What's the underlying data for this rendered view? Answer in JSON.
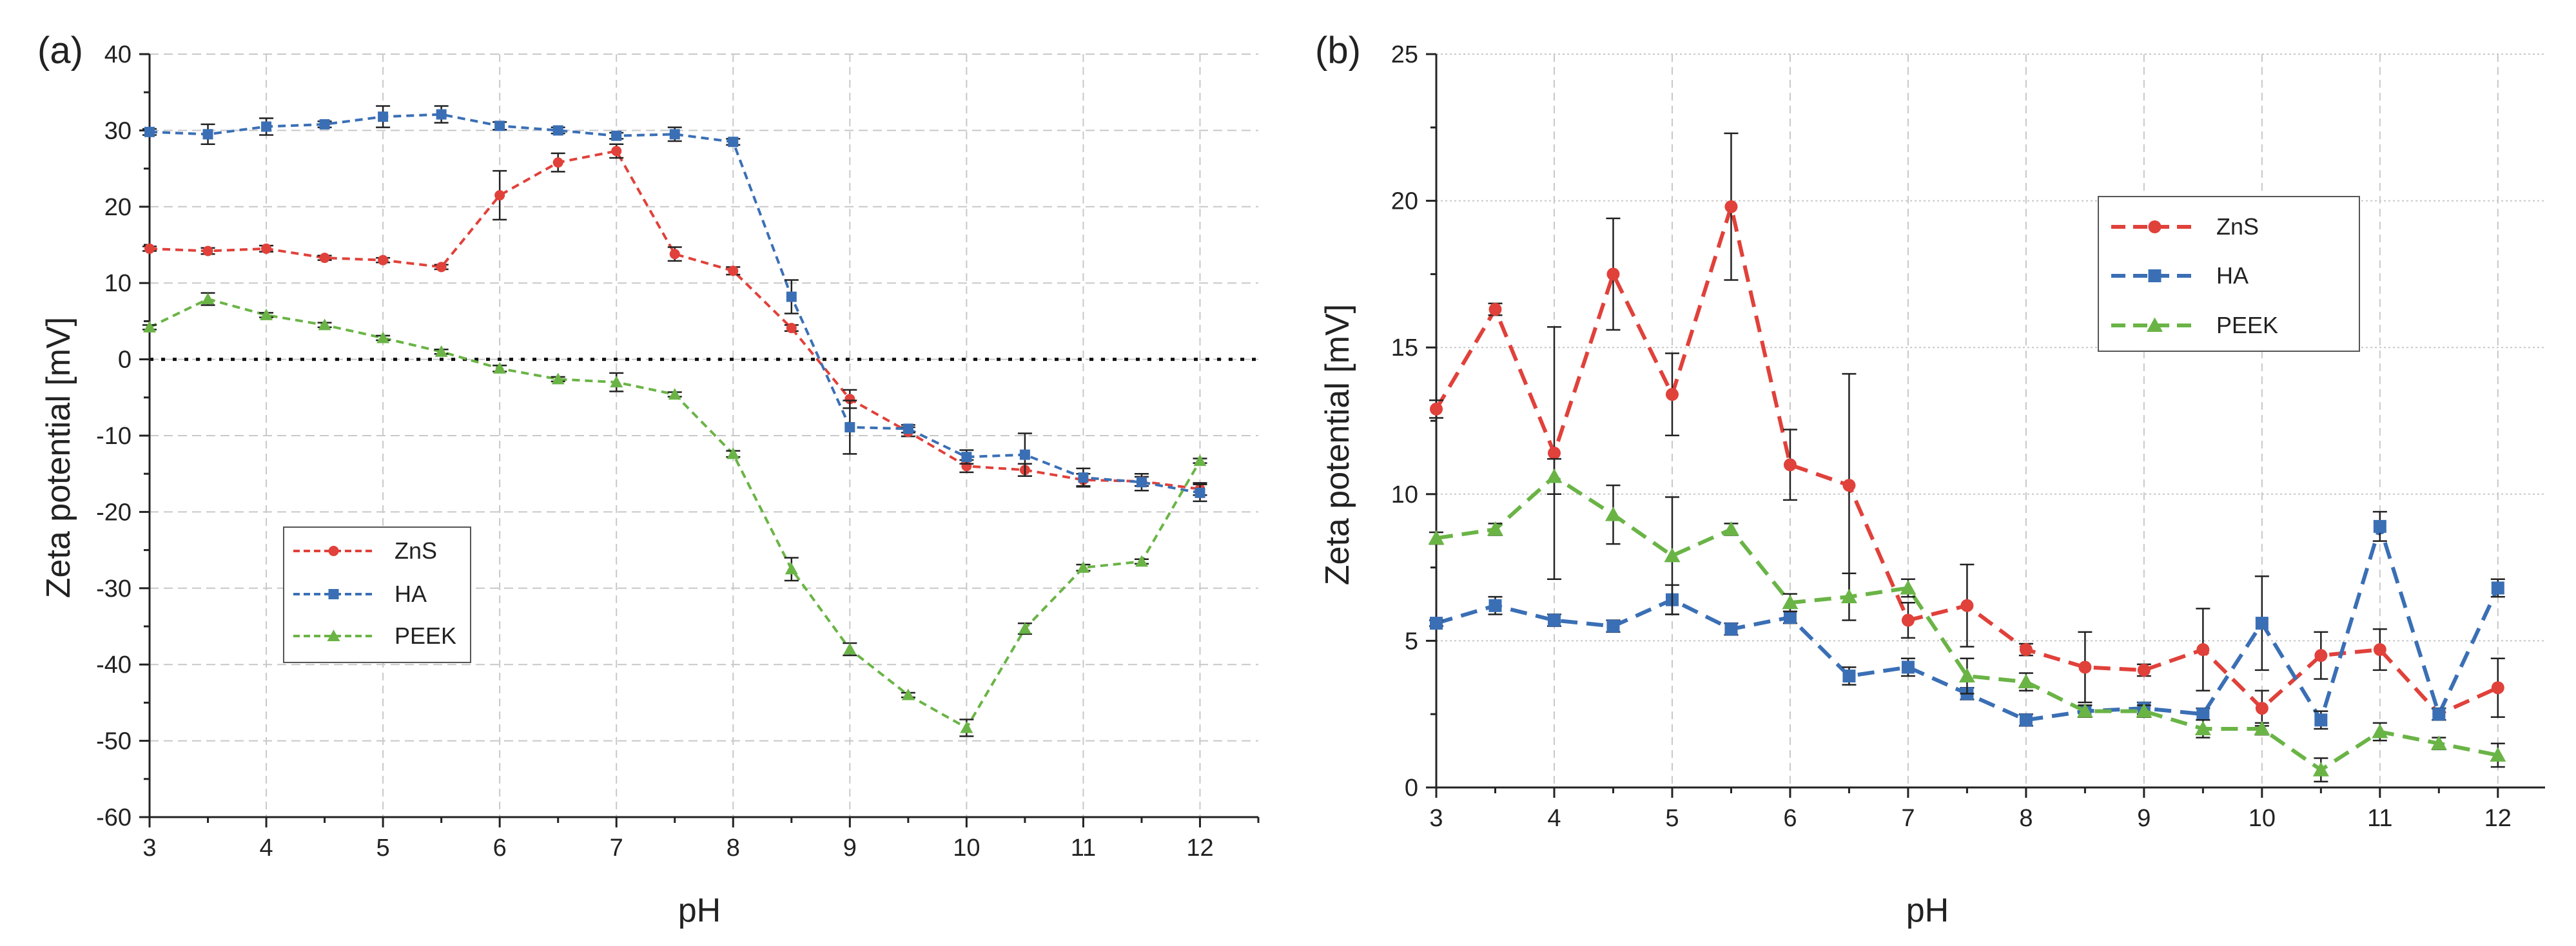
{
  "chart_data": [
    {
      "type": "line",
      "panel_label": "(a)",
      "xlabel": "pH",
      "ylabel": "Zeta potential [mV]",
      "xlim": [
        3,
        12.5
      ],
      "ylim": [
        -60,
        40
      ],
      "xticks": [
        3,
        4,
        5,
        6,
        7,
        8,
        9,
        10,
        11,
        12
      ],
      "yticks": [
        -60,
        -50,
        -40,
        -30,
        -20,
        -10,
        0,
        10,
        20,
        30,
        40
      ],
      "zero_line": true,
      "legend_position": "lower-left",
      "series": [
        {
          "name": "ZnS",
          "color": "#e0413a",
          "marker": "circle",
          "x": [
            3,
            3.5,
            4,
            4.5,
            5,
            5.5,
            6,
            6.5,
            7,
            7.5,
            8,
            8.5,
            9,
            9.5,
            10,
            10.5,
            11,
            11.5,
            12
          ],
          "y": [
            14.5,
            14.2,
            14.5,
            13.3,
            13,
            12.1,
            21.5,
            25.8,
            27.3,
            13.8,
            11.6,
            4.1,
            -5.2,
            -9.5,
            -14,
            -14.5,
            -15.8,
            -16,
            -17
          ],
          "err": [
            0.3,
            0.4,
            0.4,
            0.3,
            0.3,
            0.3,
            3.2,
            1.2,
            0.9,
            0.9,
            0.5,
            0.4,
            1.2,
            0.6,
            0.8,
            0.8,
            0.8,
            0.6,
            0.8
          ]
        },
        {
          "name": "HA",
          "color": "#3a6fb5",
          "marker": "square",
          "x": [
            3,
            3.5,
            4,
            4.5,
            5,
            5.5,
            6,
            6.5,
            7,
            7.5,
            8,
            8.5,
            9,
            9.5,
            10,
            10.5,
            11,
            11.5,
            12
          ],
          "y": [
            29.8,
            29.5,
            30.5,
            30.8,
            31.8,
            32.1,
            30.6,
            30,
            29.3,
            29.5,
            28.5,
            8.2,
            -8.9,
            -9.1,
            -12.8,
            -12.5,
            -15.5,
            -16.1,
            -17.5
          ],
          "err": [
            0.4,
            1.3,
            1.1,
            0.4,
            1.4,
            1.1,
            0.5,
            0.4,
            0.4,
            0.9,
            0.4,
            2.2,
            3.5,
            0.5,
            0.9,
            2.8,
            1.2,
            1.1,
            1.1
          ]
        },
        {
          "name": "PEEK",
          "color": "#6ab446",
          "marker": "triangle",
          "x": [
            3,
            3.5,
            4,
            4.5,
            5,
            5.5,
            6,
            6.5,
            7,
            7.5,
            8,
            8.5,
            9,
            9.5,
            10,
            10.5,
            11,
            11.5,
            12
          ],
          "y": [
            4.2,
            7.9,
            5.8,
            4.5,
            2.8,
            1,
            -1.2,
            -2.6,
            -3,
            -4.6,
            -12.4,
            -27.5,
            -38,
            -44,
            -48.3,
            -35.3,
            -27.3,
            -26.5,
            -13.3
          ],
          "err": [
            0.3,
            0.8,
            0.3,
            0.3,
            0.3,
            0.3,
            0.4,
            0.3,
            1.2,
            0.3,
            0.4,
            1.5,
            0.8,
            0.3,
            1.1,
            0.7,
            0.4,
            0.3,
            0.3
          ]
        }
      ]
    },
    {
      "type": "line",
      "panel_label": "(b)",
      "xlabel": "pH",
      "ylabel": "Zeta potential [mV]",
      "xlim": [
        3,
        12.4
      ],
      "ylim": [
        0,
        25
      ],
      "xticks": [
        3,
        4,
        5,
        6,
        7,
        8,
        9,
        10,
        11,
        12
      ],
      "yticks": [
        0,
        5,
        10,
        15,
        20,
        25
      ],
      "legend_position": "top-center",
      "series": [
        {
          "name": "ZnS",
          "color": "#e0413a",
          "marker": "circle",
          "x": [
            3,
            3.5,
            4,
            4.5,
            5,
            5.5,
            6,
            6.5,
            7,
            7.5,
            8,
            8.5,
            9,
            9.5,
            10,
            10.5,
            11,
            11.5,
            12
          ],
          "y": [
            12.9,
            16.3,
            11.4,
            17.5,
            13.4,
            19.8,
            11,
            10.3,
            5.7,
            6.2,
            4.7,
            4.1,
            4,
            4.7,
            2.7,
            4.5,
            4.7,
            2.5,
            3.4
          ],
          "err": [
            0.3,
            0.2,
            4.3,
            1.9,
            1.4,
            2.5,
            1.2,
            3.8,
            0.6,
            1.4,
            0.2,
            1.2,
            0.2,
            1.4,
            0.6,
            0.8,
            0.7,
            0.2,
            1.0
          ]
        },
        {
          "name": "HA",
          "color": "#3a6fb5",
          "marker": "square",
          "x": [
            3,
            3.5,
            4,
            4.5,
            5,
            5.5,
            6,
            6.5,
            7,
            7.5,
            8,
            8.5,
            9,
            9.5,
            10,
            10.5,
            11,
            11.5,
            12
          ],
          "y": [
            5.6,
            6.2,
            5.7,
            5.5,
            6.4,
            5.4,
            5.8,
            3.8,
            4.1,
            3.2,
            2.3,
            2.6,
            2.7,
            2.5,
            5.6,
            2.3,
            8.9,
            2.5,
            6.8
          ],
          "err": [
            0.1,
            0.3,
            0.2,
            0.2,
            0.5,
            0.2,
            0.2,
            0.3,
            0.3,
            0.2,
            0.2,
            0.2,
            0.2,
            0.2,
            1.6,
            0.3,
            0.5,
            0.2,
            0.3
          ]
        },
        {
          "name": "PEEK",
          "color": "#6ab446",
          "marker": "triangle",
          "x": [
            3,
            3.5,
            4,
            4.5,
            5,
            5.5,
            6,
            6.5,
            7,
            7.5,
            8,
            8.5,
            9,
            9.5,
            10,
            10.5,
            11,
            11.5,
            12
          ],
          "y": [
            8.5,
            8.8,
            10.6,
            9.3,
            7.9,
            8.8,
            6.3,
            6.5,
            6.8,
            3.8,
            3.6,
            2.6,
            2.6,
            2,
            2,
            0.6,
            1.9,
            1.5,
            1.1
          ],
          "err": [
            0.2,
            0.2,
            0.6,
            1,
            2,
            0.2,
            0.3,
            0.8,
            0.3,
            0.6,
            0.3,
            0.2,
            0.2,
            0.3,
            0.2,
            0.4,
            0.3,
            0.2,
            0.4
          ]
        }
      ]
    }
  ]
}
